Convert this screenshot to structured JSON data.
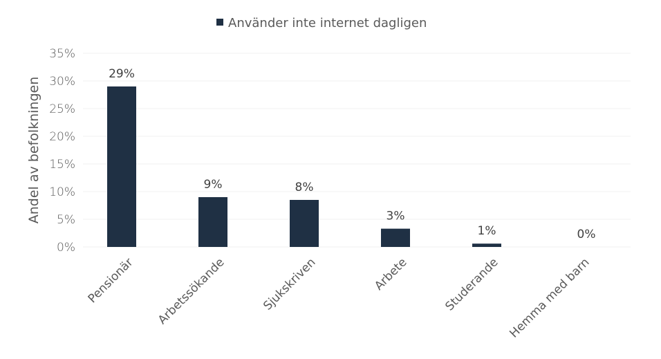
{
  "chart_data": {
    "type": "bar",
    "categories": [
      "Pensionär",
      "Arbetssökande",
      "Sjukskriven",
      "Arbete",
      "Studerande",
      "Hemma med barn"
    ],
    "series": [
      {
        "name": "Använder inte internet dagligen",
        "values": [
          0.29,
          0.09,
          0.085,
          0.033,
          0.006,
          0.0
        ],
        "labels": [
          "29%",
          "9%",
          "8%",
          "3%",
          "1%",
          "0%"
        ],
        "color": "#1f3044"
      }
    ],
    "ylabel": "Andel av befolkningen",
    "xlabel": "",
    "ylim": [
      0,
      0.35
    ],
    "yticks": [
      0,
      0.05,
      0.1,
      0.15,
      0.2,
      0.25,
      0.3,
      0.35
    ],
    "ytick_labels": [
      "0%",
      "5%",
      "10%",
      "15%",
      "20%",
      "25%",
      "30%",
      "35%"
    ],
    "grid": true,
    "legend_position": "top-center"
  }
}
